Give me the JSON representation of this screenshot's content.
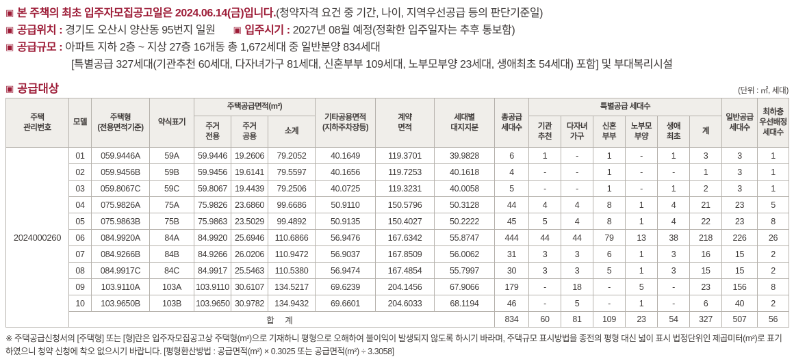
{
  "colors": {
    "accent": "#9d1c37",
    "text": "#3e3a38",
    "table_header_bg": "#f0eeea",
    "border": "#b5b1ab",
    "border_outer": "#86827c"
  },
  "notice": {
    "bullet_glyph": "▣",
    "line1_bold": "본 주책의 최초 입주자모집공고일은 2024.06.14(금)입니다.",
    "line1_rest": "(청약자격 요건 중 기간, 나이, 지역우선공급 등의 판단기준일)",
    "location_label": "공급위치 :",
    "location_value": "경기도 오산시 양산동 95번지 일원",
    "movein_label": "입주시기 :",
    "movein_value": "2027년 08월 예정(정확한 입주일자는 추후 통보함)",
    "scale_label": "공급규모 :",
    "scale_value_line1": "아파트 지하 2층 ~ 지상 27층 16개동 총 1,672세대 중 일반분양 834세대",
    "scale_value_line2": "[특별공급 327세대(기관추천 60세대, 다자녀가구 81세대, 신혼부부 109세대, 노부모부양 23세대, 생애최초 54세대) 포함] 및 부대복리시설",
    "section_title": "공급대상",
    "unit_note": "(단위 : ㎡, 세대)"
  },
  "table": {
    "headers": {
      "management": "주택\n관리번호",
      "model": "모델",
      "house_type": "주택형\n(전용면적기준)",
      "abbreviation": "약식표기",
      "supply_area_group": "주택공급면적(m²)",
      "area_private": "주거\n전용",
      "area_common": "주거\n공용",
      "area_subtotal": "소계",
      "etc_common_area": "기타공용면적\n(지하주차장등)",
      "contract_area": "계약\n면적",
      "land_share": "세대별\n대지지분",
      "total_units": "총공급\n세대수",
      "special_group": "특별공급 세대수",
      "sp_institution": "기관\n추천",
      "sp_multichild": "다자녀\n가구",
      "sp_newlywed": "신혼\n부부",
      "sp_elderly": "노부모\n부양",
      "sp_firstlife": "생애\n최초",
      "sp_sum": "계",
      "general_units": "일반공급\n세대수",
      "lowest_floor": "최하층\n우선배정\n세대수"
    },
    "management_number": "2024000260",
    "rows": [
      [
        "01",
        "059.9446A",
        "59A",
        "59.9446",
        "19.2606",
        "79.2052",
        "40.1649",
        "119.3701",
        "39.9828",
        "6",
        "1",
        "-",
        "1",
        "-",
        "1",
        "3",
        "3",
        "1"
      ],
      [
        "02",
        "059.9456B",
        "59B",
        "59.9456",
        "19.6141",
        "79.5597",
        "40.1656",
        "119.7253",
        "40.1618",
        "4",
        "-",
        "-",
        "1",
        "-",
        "-",
        "1",
        "3",
        "1"
      ],
      [
        "03",
        "059.8067C",
        "59C",
        "59.8067",
        "19.4439",
        "79.2506",
        "40.0725",
        "119.3231",
        "40.0058",
        "5",
        "-",
        "-",
        "1",
        "-",
        "1",
        "2",
        "3",
        "1"
      ],
      [
        "04",
        "075.9826A",
        "75A",
        "75.9826",
        "23.6860",
        "99.6686",
        "50.9110",
        "150.5796",
        "50.3128",
        "44",
        "4",
        "4",
        "8",
        "1",
        "4",
        "21",
        "23",
        "5"
      ],
      [
        "05",
        "075.9863B",
        "75B",
        "75.9863",
        "23.5029",
        "99.4892",
        "50.9135",
        "150.4027",
        "50.2222",
        "45",
        "5",
        "4",
        "8",
        "1",
        "4",
        "22",
        "23",
        "8"
      ],
      [
        "06",
        "084.9920A",
        "84A",
        "84.9920",
        "25.6946",
        "110.6866",
        "56.9476",
        "167.6342",
        "55.8747",
        "444",
        "44",
        "44",
        "79",
        "13",
        "38",
        "218",
        "226",
        "26"
      ],
      [
        "07",
        "084.9266B",
        "84B",
        "84.9266",
        "26.0206",
        "110.9472",
        "56.9037",
        "167.8509",
        "56.0062",
        "31",
        "3",
        "3",
        "6",
        "1",
        "3",
        "16",
        "15",
        "2"
      ],
      [
        "08",
        "084.9917C",
        "84C",
        "84.9917",
        "25.5463",
        "110.5380",
        "56.9474",
        "167.4854",
        "55.7997",
        "30",
        "3",
        "3",
        "5",
        "1",
        "3",
        "15",
        "15",
        "2"
      ],
      [
        "09",
        "103.9110A",
        "103A",
        "103.9110",
        "30.6107",
        "134.5217",
        "69.6239",
        "204.1456",
        "67.9066",
        "179",
        "-",
        "18",
        "-",
        "5",
        "-",
        "23",
        "156",
        "8"
      ],
      [
        "10",
        "103.9650B",
        "103B",
        "103.9650",
        "30.9782",
        "134.9432",
        "69.6601",
        "204.6033",
        "68.1194",
        "46",
        "-",
        "5",
        "-",
        "1",
        "-",
        "6",
        "40",
        "2"
      ]
    ],
    "total": {
      "label": "합 계",
      "values": [
        "834",
        "60",
        "81",
        "109",
        "23",
        "54",
        "327",
        "507",
        "56"
      ]
    }
  },
  "footnote": "※ 주택공급신청서의 [주택형] 또는 [형]란은 입주자모집공고상 주택형(m²)으로 기재하니 평형으로 오해하여 불이익이 발생되지 않도록 하시기 바라며, 주택규모 표시방법을 종전의 평형 대신 넓이 표시 법정단위인 제곱미터(m²)로 표기하였으니 청약 신청에 착오 없으시기 바랍니다. [평형환산방법 : 공급면적(m²) × 0.3025 또는 공급면적(m²) ÷ 3.3058]"
}
